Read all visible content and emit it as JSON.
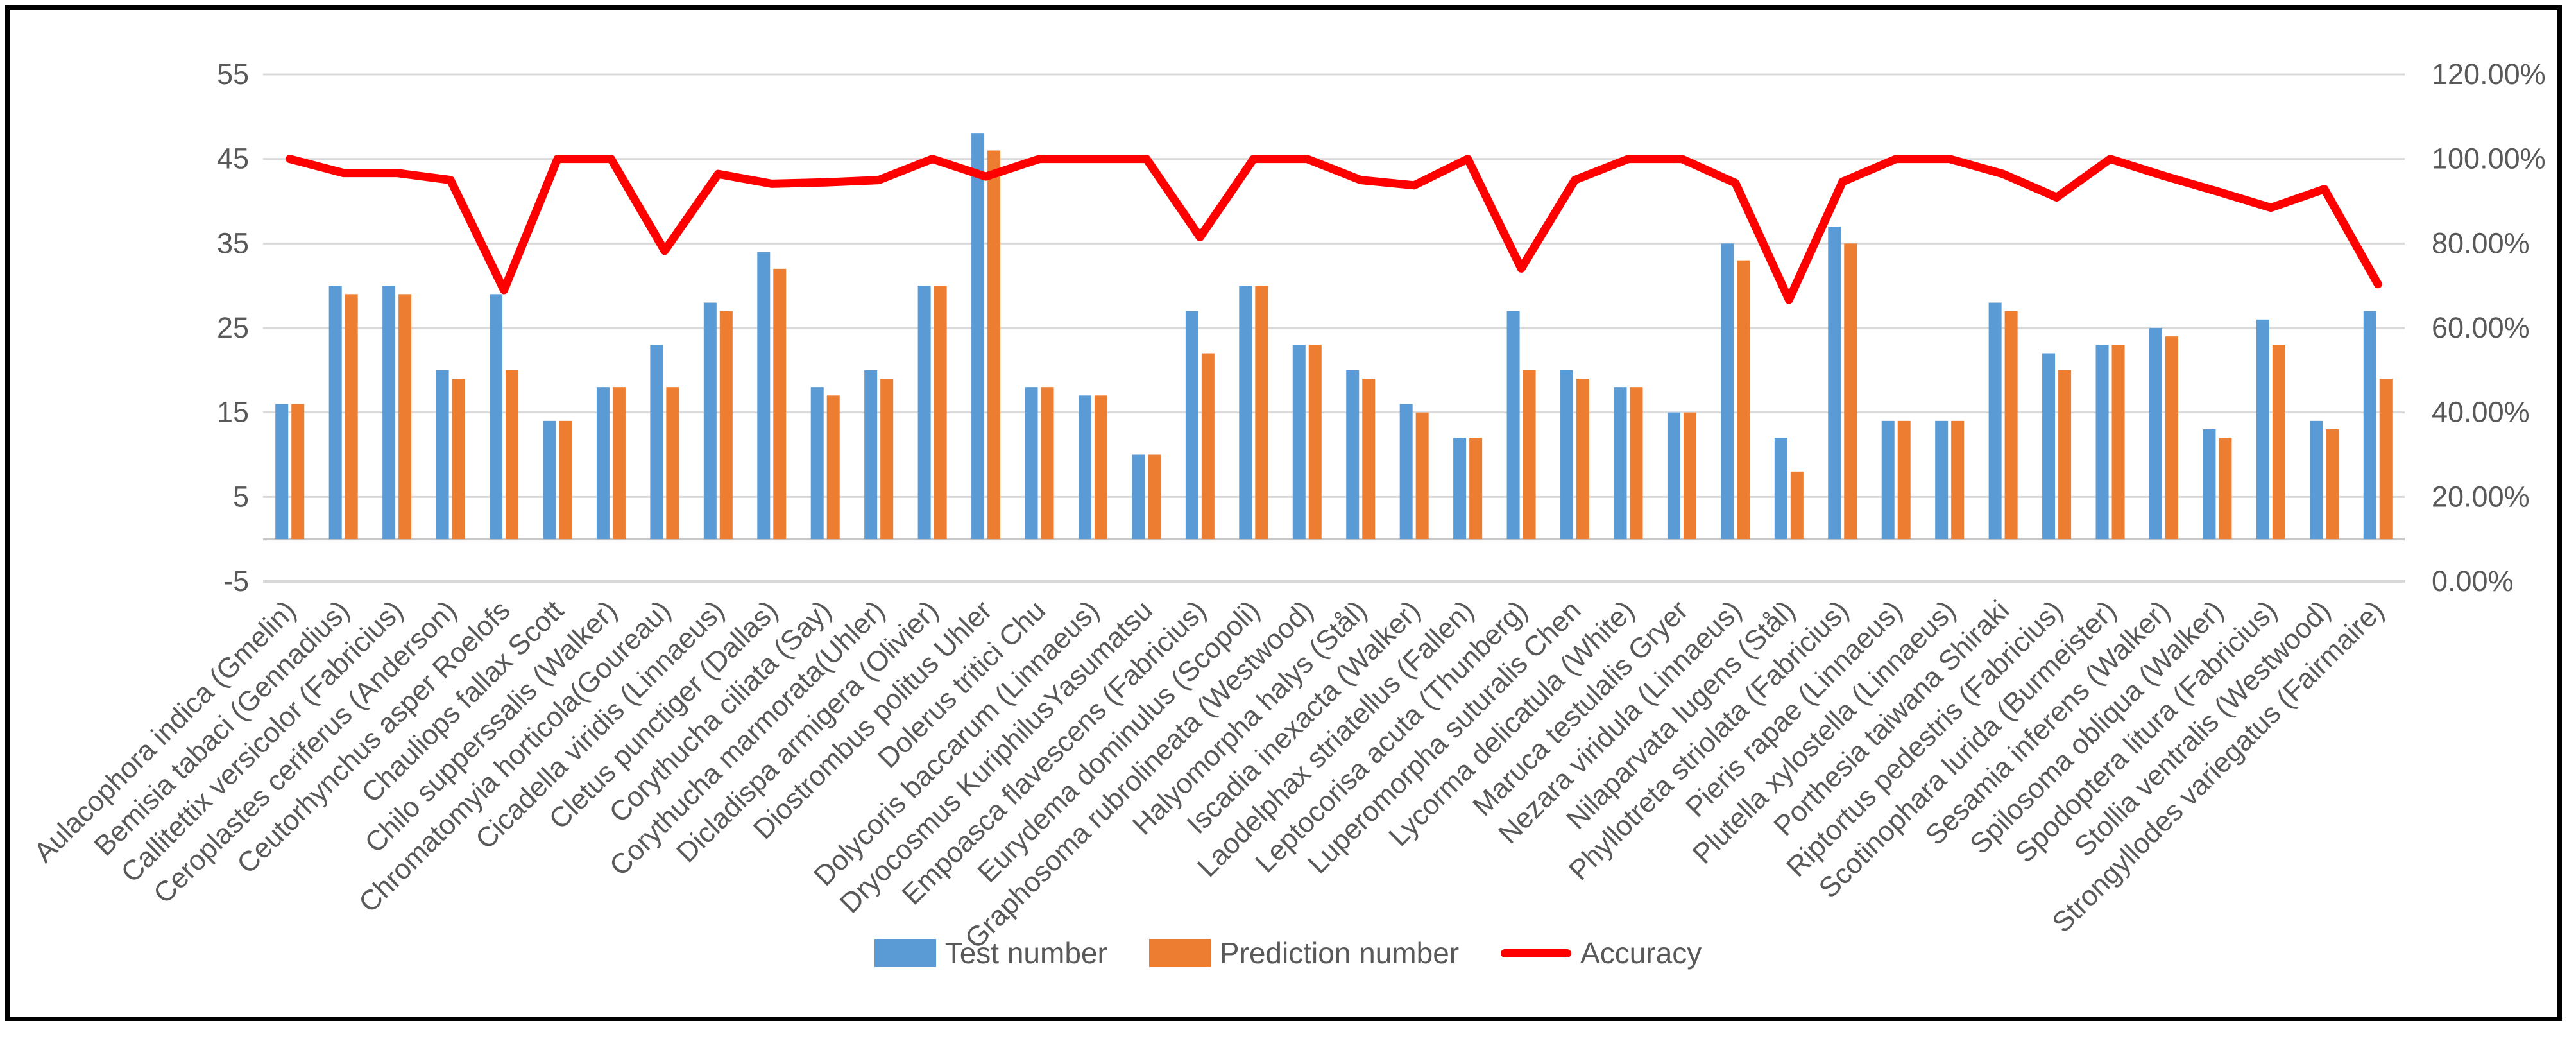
{
  "chart_data": {
    "type": "bar+line",
    "title": "",
    "categories": [
      "Aulacophora indica (Gmelin)",
      "Bemisia tabaci (Gennadius)",
      "Callitettix versicolor (Fabricius)",
      "Ceroplastes ceriferus (Anderson)",
      "Ceutorhynchus asper Roelofs",
      "Chauliops fallax Scott",
      "Chilo supperssalis (Walker)",
      "Chromatomyia horticola(Goureau)",
      "Cicadella viridis (Linnaeus)",
      "Cletus punctiger (Dallas)",
      "Corythucha ciliata (Say)",
      "Corythucha marmorata(Uhler)",
      "Dicladispa armigera (Olivier)",
      "Diostrombus politus Uhler",
      "Dolerus tritici Chu",
      "Dolycoris baccarum (Linnaeus)",
      "Dryocosmus KuriphilusYasumatsu",
      "Empoasca flavescens (Fabricius)",
      "Eurydema dominulus (Scopoli)",
      "Graphosoma rubrolineata (Westwood)",
      "Halyomorpha halys (Stål)",
      "Iscadia inexacta (Walker)",
      "Laodelphax striatellus (Fallen)",
      "Leptocorisa acuta (Thunberg)",
      "Luperomorpha suturalis Chen",
      "Lycorma delicatula (White)",
      "Maruca testulalis Gryer",
      "Nezara viridula (Linnaeus)",
      "Nilaparvata lugens (Stål)",
      "Phyllotreta striolata (Fabricius)",
      "Pieris rapae (Linnaeus)",
      "Plutella xylostella (Linnaeus)",
      "Porthesia taiwana Shiraki",
      "Riptortus pedestris (Fabricius)",
      "Scotinophara lurida (Burmeister)",
      "Sesamia inferens (Walker)",
      "Spilosoma obliqua (Walker)",
      "Spodoptera litura (Fabricius)",
      "Stollia ventralis (Westwood)",
      "Strongyllodes variegatus (Fairmaire)"
    ],
    "series": [
      {
        "name": "Test number",
        "type": "bar",
        "axis": "left",
        "color": "#5B9BD5",
        "values": [
          16,
          30,
          30,
          20,
          29,
          14,
          18,
          23,
          28,
          34,
          18,
          20,
          30,
          48,
          18,
          17,
          10,
          27,
          30,
          23,
          20,
          16,
          12,
          27,
          20,
          18,
          15,
          35,
          12,
          37,
          14,
          14,
          28,
          22,
          23,
          25,
          13,
          26,
          14,
          27
        ]
      },
      {
        "name": "Prediction number",
        "type": "bar",
        "axis": "left",
        "color": "#ED7D31",
        "values": [
          16,
          29,
          29,
          19,
          20,
          14,
          18,
          18,
          27,
          32,
          17,
          19,
          30,
          46,
          18,
          17,
          10,
          22,
          30,
          23,
          19,
          15,
          12,
          20,
          19,
          18,
          15,
          33,
          8,
          35,
          14,
          14,
          27,
          20,
          23,
          24,
          12,
          23,
          13,
          19
        ]
      },
      {
        "name": "Accuracy",
        "type": "line",
        "axis": "right",
        "color": "#FF0000",
        "values_percent": [
          100.0,
          96.67,
          96.67,
          95.0,
          68.97,
          100.0,
          100.0,
          78.26,
          96.43,
          94.12,
          94.44,
          95.0,
          100.0,
          95.83,
          100.0,
          100.0,
          100.0,
          81.48,
          100.0,
          100.0,
          95.0,
          93.75,
          100.0,
          74.07,
          95.0,
          100.0,
          100.0,
          94.29,
          66.67,
          94.59,
          100.0,
          100.0,
          96.43,
          90.91,
          100.0,
          96.0,
          92.31,
          88.46,
          92.86,
          70.37
        ]
      }
    ],
    "left_axis": {
      "min": -5,
      "max": 55,
      "step": 10,
      "tick_labels": [
        "-5",
        "5",
        "15",
        "25",
        "35",
        "45",
        "55"
      ]
    },
    "right_axis": {
      "min": 0,
      "max": 120,
      "step": 20,
      "tick_labels": [
        "0.00%",
        "20.00%",
        "40.00%",
        "60.00%",
        "80.00%",
        "100.00%",
        "120.00%"
      ]
    },
    "grid": true,
    "legend_position": "bottom",
    "bar_baseline": 0
  },
  "legend": {
    "items": [
      {
        "label": "Test number",
        "marker": "rect",
        "color": "#5B9BD5"
      },
      {
        "label": "Prediction number",
        "marker": "rect",
        "color": "#ED7D31"
      },
      {
        "label": "Accuracy",
        "marker": "line",
        "color": "#FF0000"
      }
    ]
  },
  "colors": {
    "gridline": "#D9D9D9",
    "axis_line": "#C8C8C8",
    "tick_label": "#595959",
    "frame_border": "#000000",
    "background": "#FFFFFF"
  }
}
